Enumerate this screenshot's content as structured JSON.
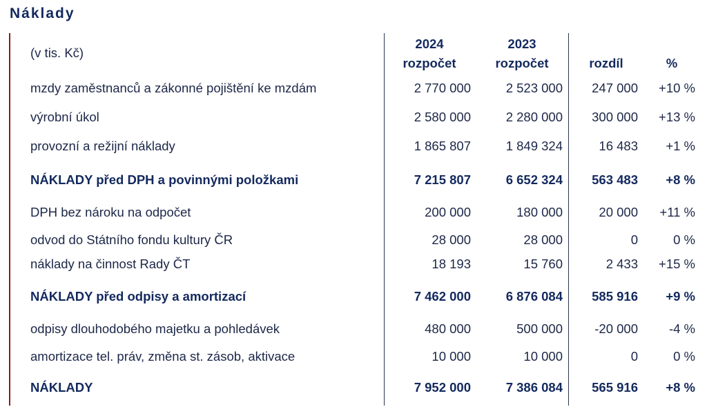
{
  "title": "Náklady",
  "header": {
    "unit": "(v tis. Kč)",
    "col1_year": "2024",
    "col1_sub": "rozpočet",
    "col2_year": "2023",
    "col2_sub": "rozpočet",
    "col3": "rozdíl",
    "col4": "%"
  },
  "rows": [
    {
      "label": "mzdy zaměstnanců a zákonné pojištění ke mzdám",
      "v2024": "2 770 000",
      "v2023": "2 523 000",
      "diff": "247 000",
      "pct": "+10 %",
      "bold": false
    },
    {
      "label": "výrobní úkol",
      "v2024": "2 580 000",
      "v2023": "2 280 000",
      "diff": "300 000",
      "pct": "+13 %",
      "bold": false
    },
    {
      "label": "provozní a režijní náklady",
      "v2024": "1 865 807",
      "v2023": "1 849 324",
      "diff": "16 483",
      "pct": "+1 %",
      "bold": false
    },
    {
      "label": "NÁKLADY před DPH a povinnými položkami",
      "v2024": "7 215 807",
      "v2023": "6 652 324",
      "diff": "563 483",
      "pct": "+8 %",
      "bold": true
    },
    {
      "label": "DPH bez nároku na odpočet",
      "v2024": "200 000",
      "v2023": "180 000",
      "diff": "20 000",
      "pct": "+11 %",
      "bold": false
    },
    {
      "label": "odvod do Státního fondu kultury ČR",
      "v2024": "28 000",
      "v2023": "28 000",
      "diff": "0",
      "pct": "0 %",
      "bold": false
    },
    {
      "label": "náklady na činnost Rady ČT",
      "v2024": "18 193",
      "v2023": "15 760",
      "diff": "2 433",
      "pct": "+15 %",
      "bold": false
    },
    {
      "label": "NÁKLADY před odpisy a amortizací",
      "v2024": "7 462 000",
      "v2023": "6 876 084",
      "diff": "585 916",
      "pct": "+9 %",
      "bold": true
    },
    {
      "label": "odpisy dlouhodobého majetku a pohledávek",
      "v2024": "480 000",
      "v2023": "500 000",
      "diff": "-20 000",
      "pct": "-4 %",
      "bold": false
    },
    {
      "label": "amortizace tel. práv, změna st. zásob, aktivace",
      "v2024": "10 000",
      "v2023": "10 000",
      "diff": "0",
      "pct": "0 %",
      "bold": false
    },
    {
      "label": "NÁKLADY",
      "v2024": "7 952 000",
      "v2023": "7 386 084",
      "diff": "565 916",
      "pct": "+8 %",
      "bold": true
    }
  ]
}
